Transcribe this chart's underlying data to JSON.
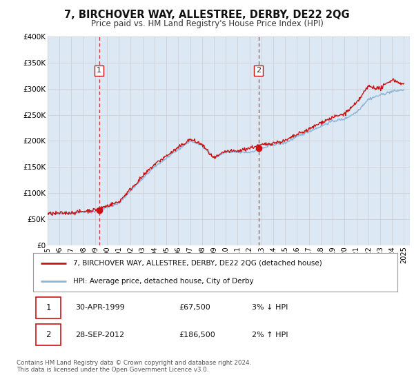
{
  "title": "7, BIRCHOVER WAY, ALLESTREE, DERBY, DE22 2QG",
  "subtitle": "Price paid vs. HM Land Registry's House Price Index (HPI)",
  "bg_color": "#dce9f5",
  "hpi_color": "#8ab4d8",
  "price_color": "#cc1111",
  "ylim": [
    0,
    400000
  ],
  "yticks": [
    0,
    50000,
    100000,
    150000,
    200000,
    250000,
    300000,
    350000,
    400000
  ],
  "ytick_labels": [
    "£0",
    "£50K",
    "£100K",
    "£150K",
    "£200K",
    "£250K",
    "£300K",
    "£350K",
    "£400K"
  ],
  "xlim_start": 1995.0,
  "xlim_end": 2025.5,
  "sale1_x": 1999.33,
  "sale1_y": 67500,
  "sale1_label": "1",
  "sale1_date": "30-APR-1999",
  "sale1_price": "£67,500",
  "sale1_hpi": "3% ↓ HPI",
  "sale2_x": 2012.75,
  "sale2_y": 186500,
  "sale2_label": "2",
  "sale2_date": "28-SEP-2012",
  "sale2_price": "£186,500",
  "sale2_hpi": "2% ↑ HPI",
  "legend_line1": "7, BIRCHOVER WAY, ALLESTREE, DERBY, DE22 2QG (detached house)",
  "legend_line2": "HPI: Average price, detached house, City of Derby",
  "footer1": "Contains HM Land Registry data © Crown copyright and database right 2024.",
  "footer2": "This data is licensed under the Open Government Licence v3.0.",
  "xlabel_years": [
    1995,
    1996,
    1997,
    1998,
    1999,
    2000,
    2001,
    2002,
    2003,
    2004,
    2005,
    2006,
    2007,
    2008,
    2009,
    2010,
    2011,
    2012,
    2013,
    2014,
    2015,
    2016,
    2017,
    2018,
    2019,
    2020,
    2021,
    2022,
    2023,
    2024,
    2025
  ]
}
